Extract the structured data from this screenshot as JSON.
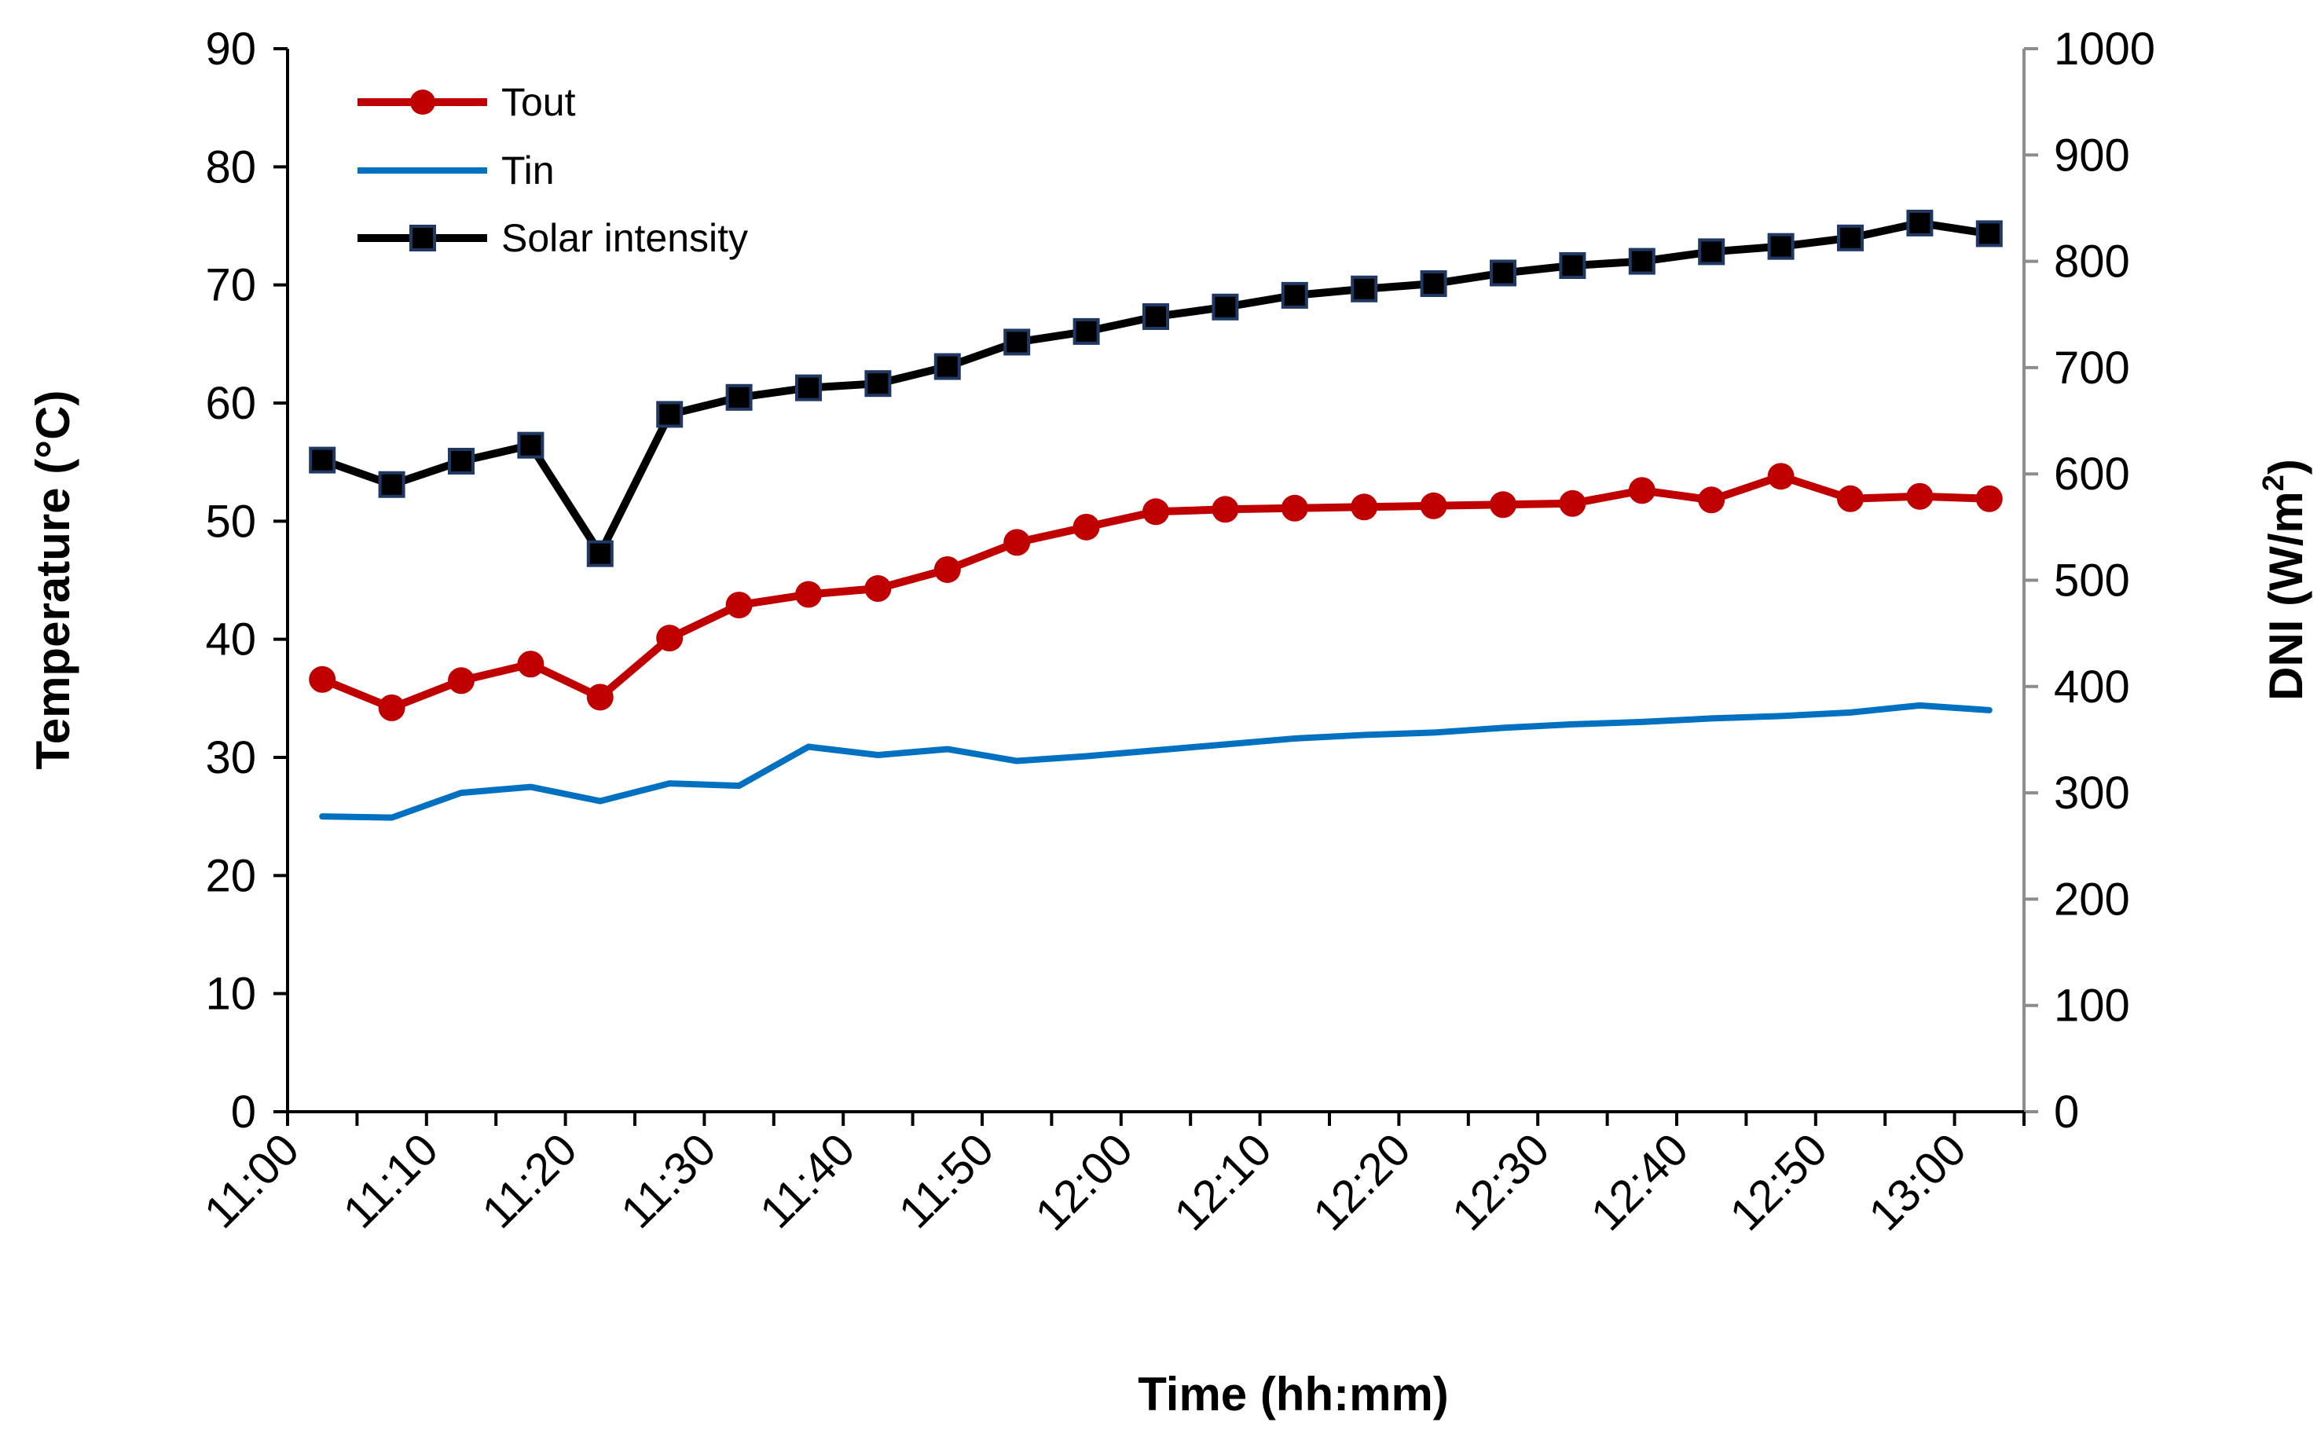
{
  "chart_data": {
    "type": "line",
    "title": "",
    "xlabel": "Time (hh:mm)",
    "ylabel_left": "Temperature (°C)",
    "ylabel_right_main": "DNI (W/m",
    "ylabel_right_sup": "2",
    "ylabel_right_close": ")",
    "grid": false,
    "legend_position": "top-left",
    "x_range_minutes": [
      0,
      125
    ],
    "x_ticks": [
      "11:00",
      "11:10",
      "11:20",
      "11:30",
      "11:40",
      "11:50",
      "12:00",
      "12:10",
      "12:20",
      "12:30",
      "12:40",
      "12:50",
      "13:00"
    ],
    "x_tick_minutes": [
      0,
      10,
      20,
      30,
      40,
      50,
      60,
      70,
      80,
      90,
      100,
      110,
      120
    ],
    "ylim_left": [
      0,
      90
    ],
    "yticks_left": [
      0,
      10,
      20,
      30,
      40,
      50,
      60,
      70,
      80,
      90
    ],
    "ylim_right": [
      0,
      1000
    ],
    "yticks_right": [
      0,
      100,
      200,
      300,
      400,
      500,
      600,
      700,
      800,
      900,
      1000
    ],
    "x_minutes": [
      2.5,
      7.5,
      12.5,
      17.5,
      22.5,
      27.5,
      32.5,
      37.5,
      42.5,
      47.5,
      52.5,
      57.5,
      62.5,
      67.5,
      72.5,
      77.5,
      82.5,
      87.5,
      92.5,
      97.5,
      102.5,
      107.5,
      112.5,
      117.5,
      122.5
    ],
    "series": [
      {
        "name": "Tout",
        "axis": "left",
        "color": "#c00000",
        "marker": "circle",
        "values": [
          36.6,
          34.2,
          36.5,
          37.9,
          35.1,
          40.1,
          42.9,
          43.8,
          44.3,
          45.9,
          48.2,
          49.5,
          50.8,
          51.0,
          51.1,
          51.2,
          51.3,
          51.4,
          51.5,
          52.6,
          51.8,
          53.8,
          51.9,
          52.1,
          51.9
        ]
      },
      {
        "name": "Tin",
        "axis": "left",
        "color": "#0070c0",
        "marker": "none",
        "values": [
          25.0,
          24.9,
          27.0,
          27.5,
          26.3,
          27.8,
          27.6,
          30.9,
          30.2,
          30.7,
          29.7,
          30.1,
          30.6,
          31.1,
          31.6,
          31.9,
          32.1,
          32.5,
          32.8,
          33.0,
          33.3,
          33.5,
          33.8,
          34.4,
          34.0
        ]
      },
      {
        "name": "Solar intensity",
        "axis": "right",
        "color": "#000000",
        "marker": "square",
        "values": [
          613,
          590,
          612,
          627,
          525,
          656,
          672,
          681,
          685,
          701,
          724,
          734,
          748,
          757,
          768,
          774,
          779,
          789,
          796,
          800,
          809,
          814,
          822,
          836,
          826
        ]
      }
    ]
  }
}
